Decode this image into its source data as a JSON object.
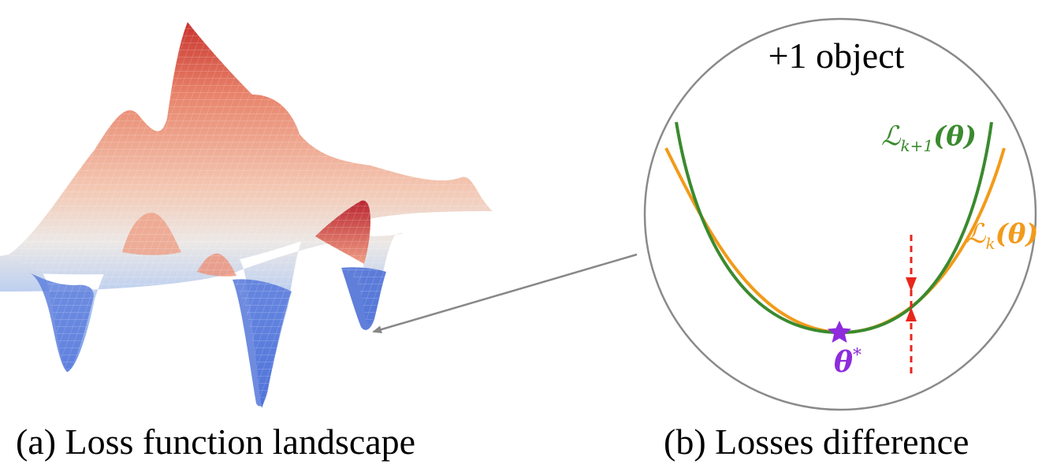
{
  "panel_a": {
    "caption": "(a) Loss function landscape"
  },
  "panel_b": {
    "caption": "(b) Losses difference",
    "inset_title": "+1 object",
    "curve_k1": {
      "label_main": "ℒ",
      "label_sub": "k+1",
      "label_arg": "(θ)",
      "color": "#3a8a2e"
    },
    "curve_k": {
      "label_main": "ℒ",
      "label_sub": "k",
      "label_arg": "(θ)",
      "color": "#f29a1a"
    },
    "optimum": {
      "label_main": "θ",
      "label_sup": "*",
      "color": "#8e2bdc"
    },
    "gap_marker_color": "#e8261c"
  },
  "surface_colors": {
    "high": "#c9272e",
    "mid": "#ebe7e6",
    "low": "#3d5fd1"
  },
  "pointer_color": "#888888",
  "circle_color": "#8a8a8a"
}
